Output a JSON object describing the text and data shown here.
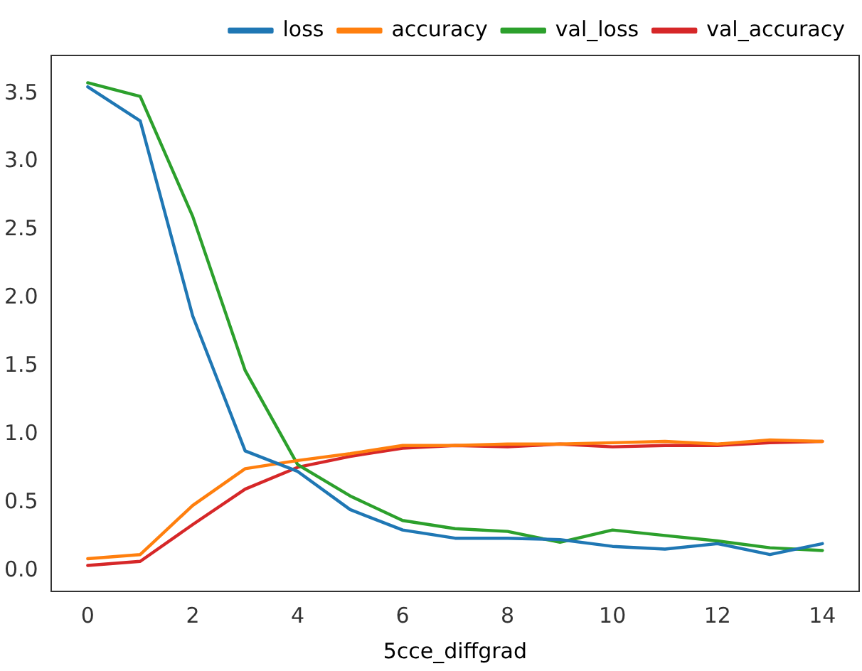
{
  "chart_data": {
    "type": "line",
    "xlabel": "5cce_diffgrad",
    "x": [
      0,
      1,
      2,
      3,
      4,
      5,
      6,
      7,
      8,
      9,
      10,
      11,
      12,
      13,
      14
    ],
    "series": [
      {
        "name": "loss",
        "color": "#1f77b4",
        "values": [
          3.55,
          3.3,
          1.87,
          0.88,
          0.73,
          0.45,
          0.3,
          0.24,
          0.24,
          0.23,
          0.18,
          0.16,
          0.2,
          0.12,
          0.2
        ]
      },
      {
        "name": "accuracy",
        "color": "#ff7f0e",
        "values": [
          0.09,
          0.12,
          0.48,
          0.75,
          0.81,
          0.86,
          0.92,
          0.92,
          0.93,
          0.93,
          0.94,
          0.95,
          0.93,
          0.96,
          0.95
        ]
      },
      {
        "name": "val_loss",
        "color": "#2ca02c",
        "values": [
          3.58,
          3.48,
          2.6,
          1.47,
          0.78,
          0.55,
          0.37,
          0.31,
          0.29,
          0.21,
          0.3,
          0.26,
          0.22,
          0.17,
          0.15
        ]
      },
      {
        "name": "val_accuracy",
        "color": "#d62728",
        "values": [
          0.04,
          0.07,
          0.34,
          0.6,
          0.76,
          0.84,
          0.9,
          0.92,
          0.91,
          0.93,
          0.91,
          0.92,
          0.92,
          0.94,
          0.95
        ]
      }
    ],
    "xlim": [
      -0.7,
      14.7
    ],
    "xticks": [
      0,
      2,
      4,
      6,
      8,
      10,
      12,
      14
    ],
    "ylim": [
      -0.15,
      3.78
    ],
    "yticks": [
      {
        "value": 0,
        "label": "0.0"
      },
      {
        "value": 0.5,
        "label": "0.5"
      },
      {
        "value": 1,
        "label": "1.0"
      },
      {
        "value": 1.5,
        "label": "1.5"
      },
      {
        "value": 2,
        "label": "2.0"
      },
      {
        "value": 2.5,
        "label": "2.5"
      },
      {
        "value": 3,
        "label": "3.0"
      },
      {
        "value": 3.5,
        "label": "3.5"
      }
    ],
    "grid": false,
    "legend": "top right",
    "marker": "none",
    "line_style": "solid"
  }
}
